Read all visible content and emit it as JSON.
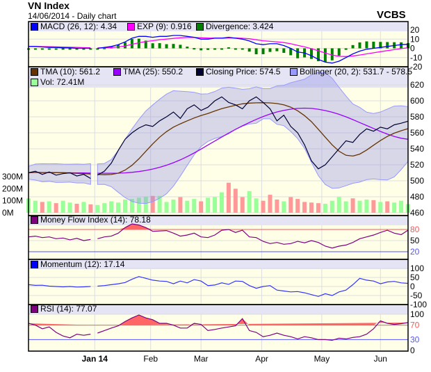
{
  "header": {
    "title": "VN Index",
    "subtitle": "14/06/2014 - Daily chart",
    "brand": "VCBS"
  },
  "legends": {
    "macd": [
      {
        "label": "MACD (26, 12): 4.34",
        "color": "#0000ff"
      },
      {
        "label": "EXP (9): 0.916",
        "color": "#ff00ff"
      },
      {
        "label": "Divergence: 3.424",
        "color": "#008000"
      }
    ],
    "main": [
      {
        "label": "TMA (10): 561.2",
        "color": "#663300"
      },
      {
        "label": "TMA (25): 550.2",
        "color": "#9900ff"
      },
      {
        "label": "Closing Price: 574.5",
        "color": "#000033"
      },
      {
        "label": "Bollinger (20, 2): 531.7 - 578.5",
        "color": "#9999ff"
      }
    ],
    "vol": {
      "label": "Vol: 72.41M",
      "color": "#99ff99"
    },
    "mfi": {
      "label": "Money Flow Index (14): 78.18",
      "color": "#800080"
    },
    "mom": {
      "label": "Momentum (12): 17.14",
      "color": "#0000ff"
    },
    "rsi": {
      "label": "RSI (14): 77.07",
      "color": "#800080"
    }
  },
  "chart_data": {
    "type": "line",
    "title": "VN Index",
    "x_labels": [
      {
        "label": "Jan 14",
        "index": 9.6,
        "bold": true
      },
      {
        "label": "Feb",
        "index": 17.7
      },
      {
        "label": "Mar",
        "index": 25
      },
      {
        "label": "Apr",
        "index": 33.8
      },
      {
        "label": "May",
        "index": 42.5
      },
      {
        "label": "Jun",
        "index": 51
      }
    ],
    "gap_after_index": 9,
    "close": [
      510,
      512,
      508,
      511,
      507,
      509,
      510,
      506,
      508,
      503,
      507,
      512,
      522,
      538,
      552,
      560,
      566,
      570,
      568,
      575,
      580,
      586,
      578,
      590,
      595,
      588,
      592,
      600,
      605,
      598,
      595,
      590,
      600,
      605,
      598,
      590,
      575,
      582,
      568,
      560,
      545,
      525,
      515,
      520,
      530,
      540,
      550,
      548,
      558,
      565,
      562,
      567,
      565,
      570,
      572,
      574.5
    ],
    "volume_M": [
      120,
      100,
      90,
      95,
      80,
      100,
      85,
      75,
      90,
      70,
      65,
      80,
      95,
      85,
      110,
      115,
      125,
      135,
      140,
      140,
      90,
      110,
      130,
      100,
      115,
      95,
      125,
      130,
      170,
      250,
      200,
      130,
      180,
      120,
      100,
      150,
      110,
      95,
      130,
      115,
      90,
      85,
      80,
      75,
      100,
      130,
      95,
      120,
      100,
      110,
      105,
      90,
      95,
      85,
      100,
      72.41
    ],
    "macd": [
      2,
      2,
      1.5,
      1,
      1,
      0.5,
      0.5,
      0,
      0,
      0,
      0,
      1,
      2,
      4,
      7,
      11,
      13,
      13,
      12,
      13,
      13,
      14,
      14,
      13,
      12,
      10,
      10,
      11,
      11,
      12,
      11,
      10,
      8,
      5,
      4,
      5,
      5,
      3,
      0,
      -4,
      -5,
      -8,
      -12,
      -15,
      -16,
      -14,
      -10,
      -6,
      -3,
      -1,
      0,
      1,
      2,
      3,
      4,
      4.34
    ],
    "mfi": [
      60,
      62,
      58,
      60,
      55,
      57,
      52,
      56,
      50,
      53,
      55,
      60,
      62,
      70,
      85,
      95,
      92,
      85,
      75,
      76,
      77,
      70,
      62,
      65,
      70,
      60,
      58,
      65,
      78,
      80,
      72,
      78,
      60,
      58,
      48,
      42,
      45,
      40,
      42,
      48,
      44,
      50,
      45,
      35,
      30,
      35,
      38,
      45,
      55,
      60,
      65,
      72,
      78,
      70,
      66,
      78.18
    ],
    "momentum": [
      10,
      6,
      7,
      2,
      0,
      -2,
      0,
      -3,
      -2,
      0,
      2,
      5,
      10,
      15,
      22,
      40,
      55,
      45,
      35,
      30,
      28,
      15,
      30,
      20,
      38,
      30,
      5,
      8,
      20,
      12,
      30,
      28,
      5,
      -10,
      0,
      5,
      -20,
      -25,
      -30,
      -28,
      -35,
      -45,
      -55,
      -40,
      -50,
      -30,
      -20,
      10,
      45,
      35,
      30,
      15,
      25,
      28,
      20,
      17.14
    ],
    "rsi": [
      75,
      70,
      60,
      65,
      50,
      40,
      35,
      45,
      42,
      45,
      48,
      55,
      62,
      68,
      80,
      90,
      98,
      90,
      85,
      75,
      75,
      70,
      62,
      62,
      75,
      72,
      55,
      58,
      62,
      65,
      68,
      88,
      55,
      50,
      38,
      42,
      48,
      42,
      38,
      32,
      38,
      35,
      30,
      30,
      28,
      34,
      32,
      36,
      38,
      45,
      60,
      82,
      75,
      72,
      74,
      77.07
    ],
    "ylim_price": [
      460,
      620
    ],
    "ylim_volume_M": [
      0,
      300
    ],
    "price_ticks": [
      620,
      600,
      580,
      560,
      540,
      520,
      500,
      480,
      460
    ],
    "volume_ticks": [
      "300M",
      "200M",
      "100M",
      "0M"
    ],
    "macd_ticks": [
      20,
      10,
      0,
      -10,
      -20
    ],
    "mfi_ticks": [
      80,
      50,
      20
    ],
    "momentum_ticks": [
      100,
      50,
      0,
      -50,
      -100
    ],
    "rsi_ticks": [
      100,
      70,
      30,
      0
    ]
  }
}
